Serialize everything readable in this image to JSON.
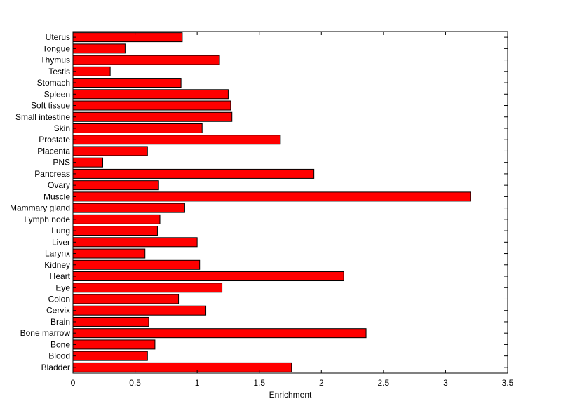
{
  "chart_data": {
    "type": "bar",
    "orientation": "horizontal",
    "title": "",
    "xlabel": "Enrichment",
    "ylabel": "",
    "xlim": [
      0,
      3.5
    ],
    "xticks": [
      0,
      0.5,
      1,
      1.5,
      2,
      2.5,
      3,
      3.5
    ],
    "xtick_labels": [
      "0",
      "0.5",
      "1",
      "1.5",
      "2",
      "2.5",
      "3",
      "3.5"
    ],
    "grid": false,
    "bar_color": "#ff0000",
    "bar_edge_color": "#000000",
    "categories": [
      "Bladder",
      "Blood",
      "Bone",
      "Bone marrow",
      "Brain",
      "Cervix",
      "Colon",
      "Eye",
      "Heart",
      "Kidney",
      "Larynx",
      "Liver",
      "Lung",
      "Lymph node",
      "Mammary gland",
      "Muscle",
      "Ovary",
      "Pancreas",
      "PNS",
      "Placenta",
      "Prostate",
      "Skin",
      "Small intestine",
      "Soft tissue",
      "Spleen",
      "Stomach",
      "Testis",
      "Thymus",
      "Tongue",
      "Uterus"
    ],
    "values": [
      1.76,
      0.6,
      0.66,
      2.36,
      0.61,
      1.07,
      0.85,
      1.2,
      2.18,
      1.02,
      0.58,
      1.0,
      0.68,
      0.7,
      0.9,
      3.2,
      0.69,
      1.94,
      0.24,
      0.6,
      1.67,
      1.04,
      1.28,
      1.27,
      1.25,
      0.87,
      0.3,
      1.18,
      0.42,
      0.88
    ]
  }
}
